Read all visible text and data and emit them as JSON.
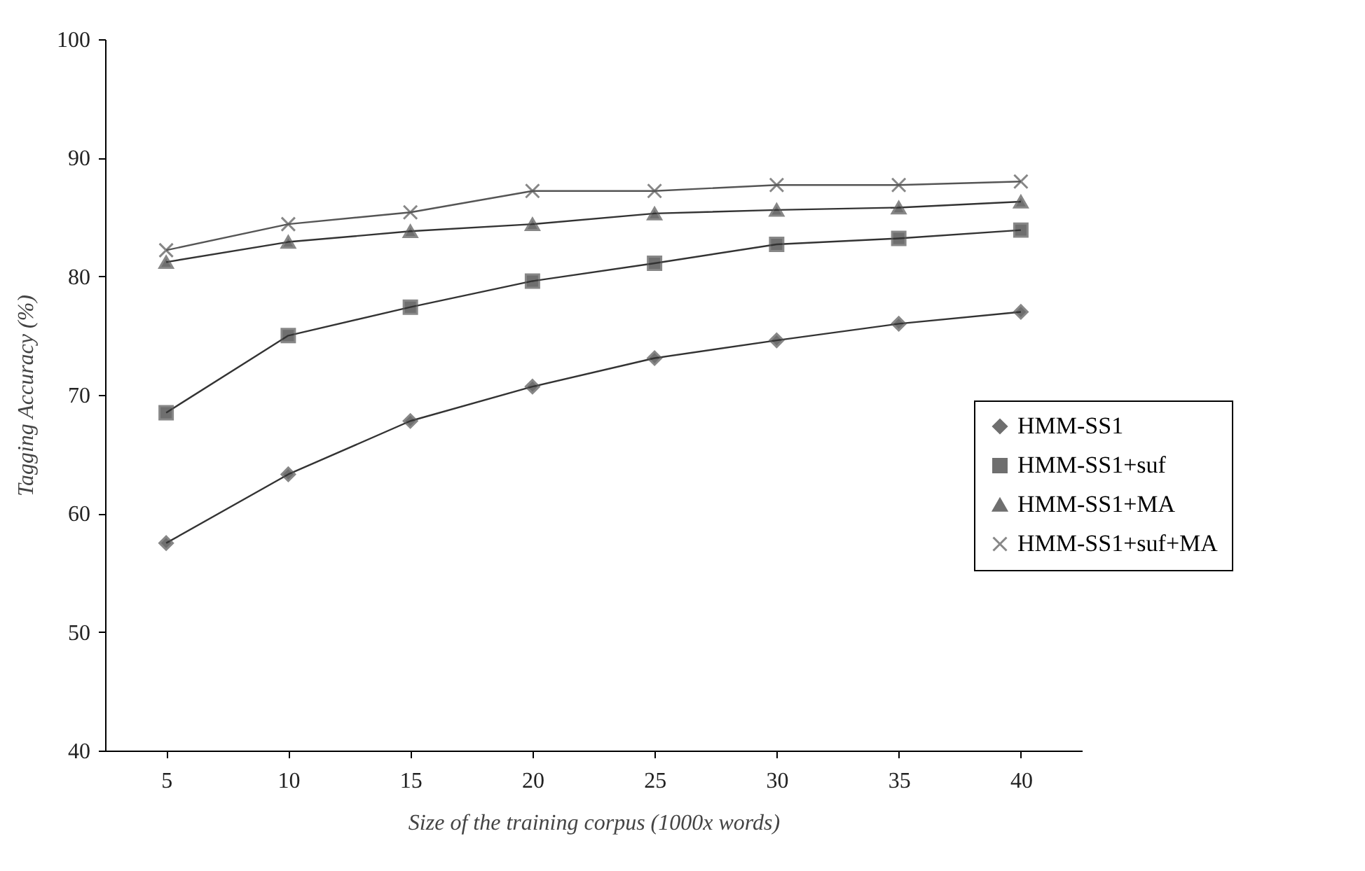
{
  "chart_data": {
    "type": "line",
    "xlabel": "Size of the training corpus (1000x words)",
    "ylabel": "Tagging Accuracy (%)",
    "categories": [
      "5",
      "10",
      "15",
      "20",
      "25",
      "30",
      "35",
      "40"
    ],
    "series": [
      {
        "name": "HMM-SS1",
        "color": "#333333",
        "marker": "diamond",
        "values": [
          57.5,
          63.3,
          67.8,
          70.7,
          73.1,
          74.6,
          76.0,
          77.0
        ]
      },
      {
        "name": "HMM-SS1+suf",
        "color": "#333333",
        "marker": "square",
        "values": [
          68.5,
          75.0,
          77.4,
          79.6,
          81.1,
          82.7,
          83.2,
          83.9
        ]
      },
      {
        "name": "HMM-SS1+MA",
        "color": "#333333",
        "marker": "triangle",
        "values": [
          81.2,
          82.9,
          83.8,
          84.4,
          85.3,
          85.6,
          85.8,
          86.3
        ]
      },
      {
        "name": "HMM-SS1+suf+MA",
        "color": "#555555",
        "marker": "cross",
        "values": [
          82.2,
          84.4,
          85.4,
          87.2,
          87.2,
          87.7,
          87.7,
          88.0
        ]
      }
    ],
    "ylim": [
      40,
      100
    ],
    "yticks": [
      40,
      50,
      60,
      70,
      80,
      90,
      100
    ],
    "grid": false,
    "legend": "right"
  }
}
